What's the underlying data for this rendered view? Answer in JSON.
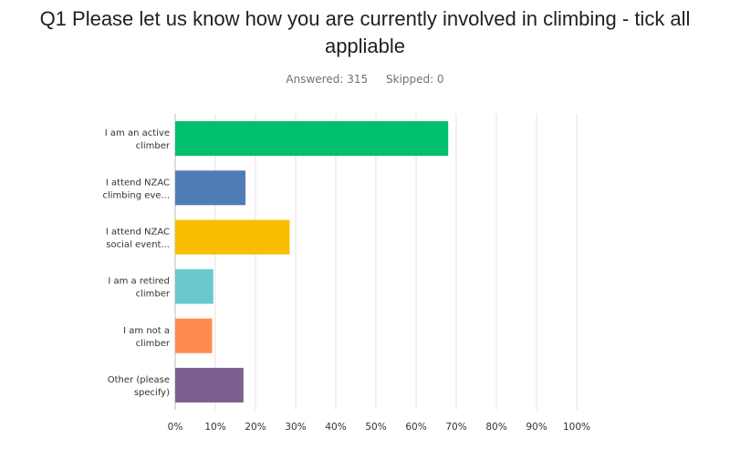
{
  "title": "Q1 Please let us know how you are currently involved in climbing - tick all appliable",
  "answered": "Answered: 315",
  "skipped": "Skipped: 0",
  "chart_data": {
    "type": "bar",
    "orientation": "horizontal",
    "categories": [
      [
        "I am an active",
        "climber"
      ],
      [
        "I attend NZAC",
        "climbing eve..."
      ],
      [
        "I attend NZAC",
        "social event..."
      ],
      [
        "I am a retired",
        "climber"
      ],
      [
        "I am not a",
        "climber"
      ],
      [
        "Other (please",
        "specify)"
      ]
    ],
    "values": [
      68,
      17.5,
      28.5,
      9.5,
      9.2,
      17
    ],
    "colors": [
      "#00bf6f",
      "#507cb6",
      "#f9be00",
      "#6bc8cd",
      "#ff8b4f",
      "#7d5e90"
    ],
    "xlim": [
      0,
      100
    ],
    "ticks": [
      0,
      10,
      20,
      30,
      40,
      50,
      60,
      70,
      80,
      90,
      100
    ],
    "tick_labels": [
      "0%",
      "10%",
      "20%",
      "30%",
      "40%",
      "50%",
      "60%",
      "70%",
      "80%",
      "90%",
      "100%"
    ],
    "grid": true,
    "legend": "none"
  }
}
